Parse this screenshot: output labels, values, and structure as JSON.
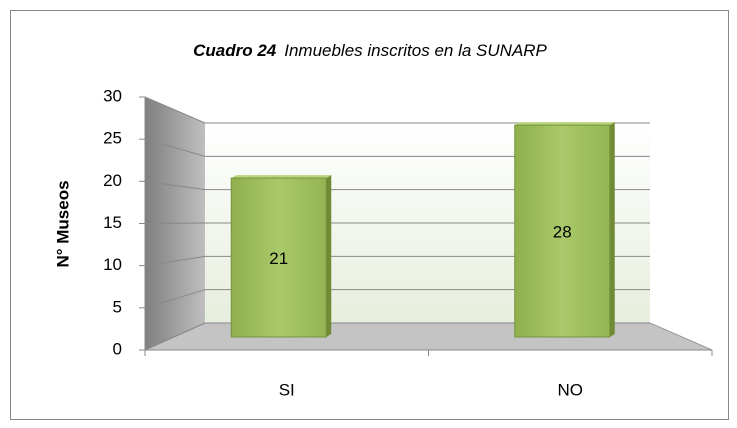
{
  "chart_data": {
    "type": "bar3d",
    "title_number": "Cuadro 24",
    "title": "Inmuebles inscritos en la SUNARP",
    "y_label": "N° Museos",
    "categories": [
      "SI",
      "NO"
    ],
    "values": [
      21,
      28
    ],
    "color": "#9bbb59",
    "ylim": [
      0,
      30
    ],
    "yticks": [
      0,
      5,
      10,
      15,
      20,
      25,
      30
    ],
    "grid": true
  }
}
